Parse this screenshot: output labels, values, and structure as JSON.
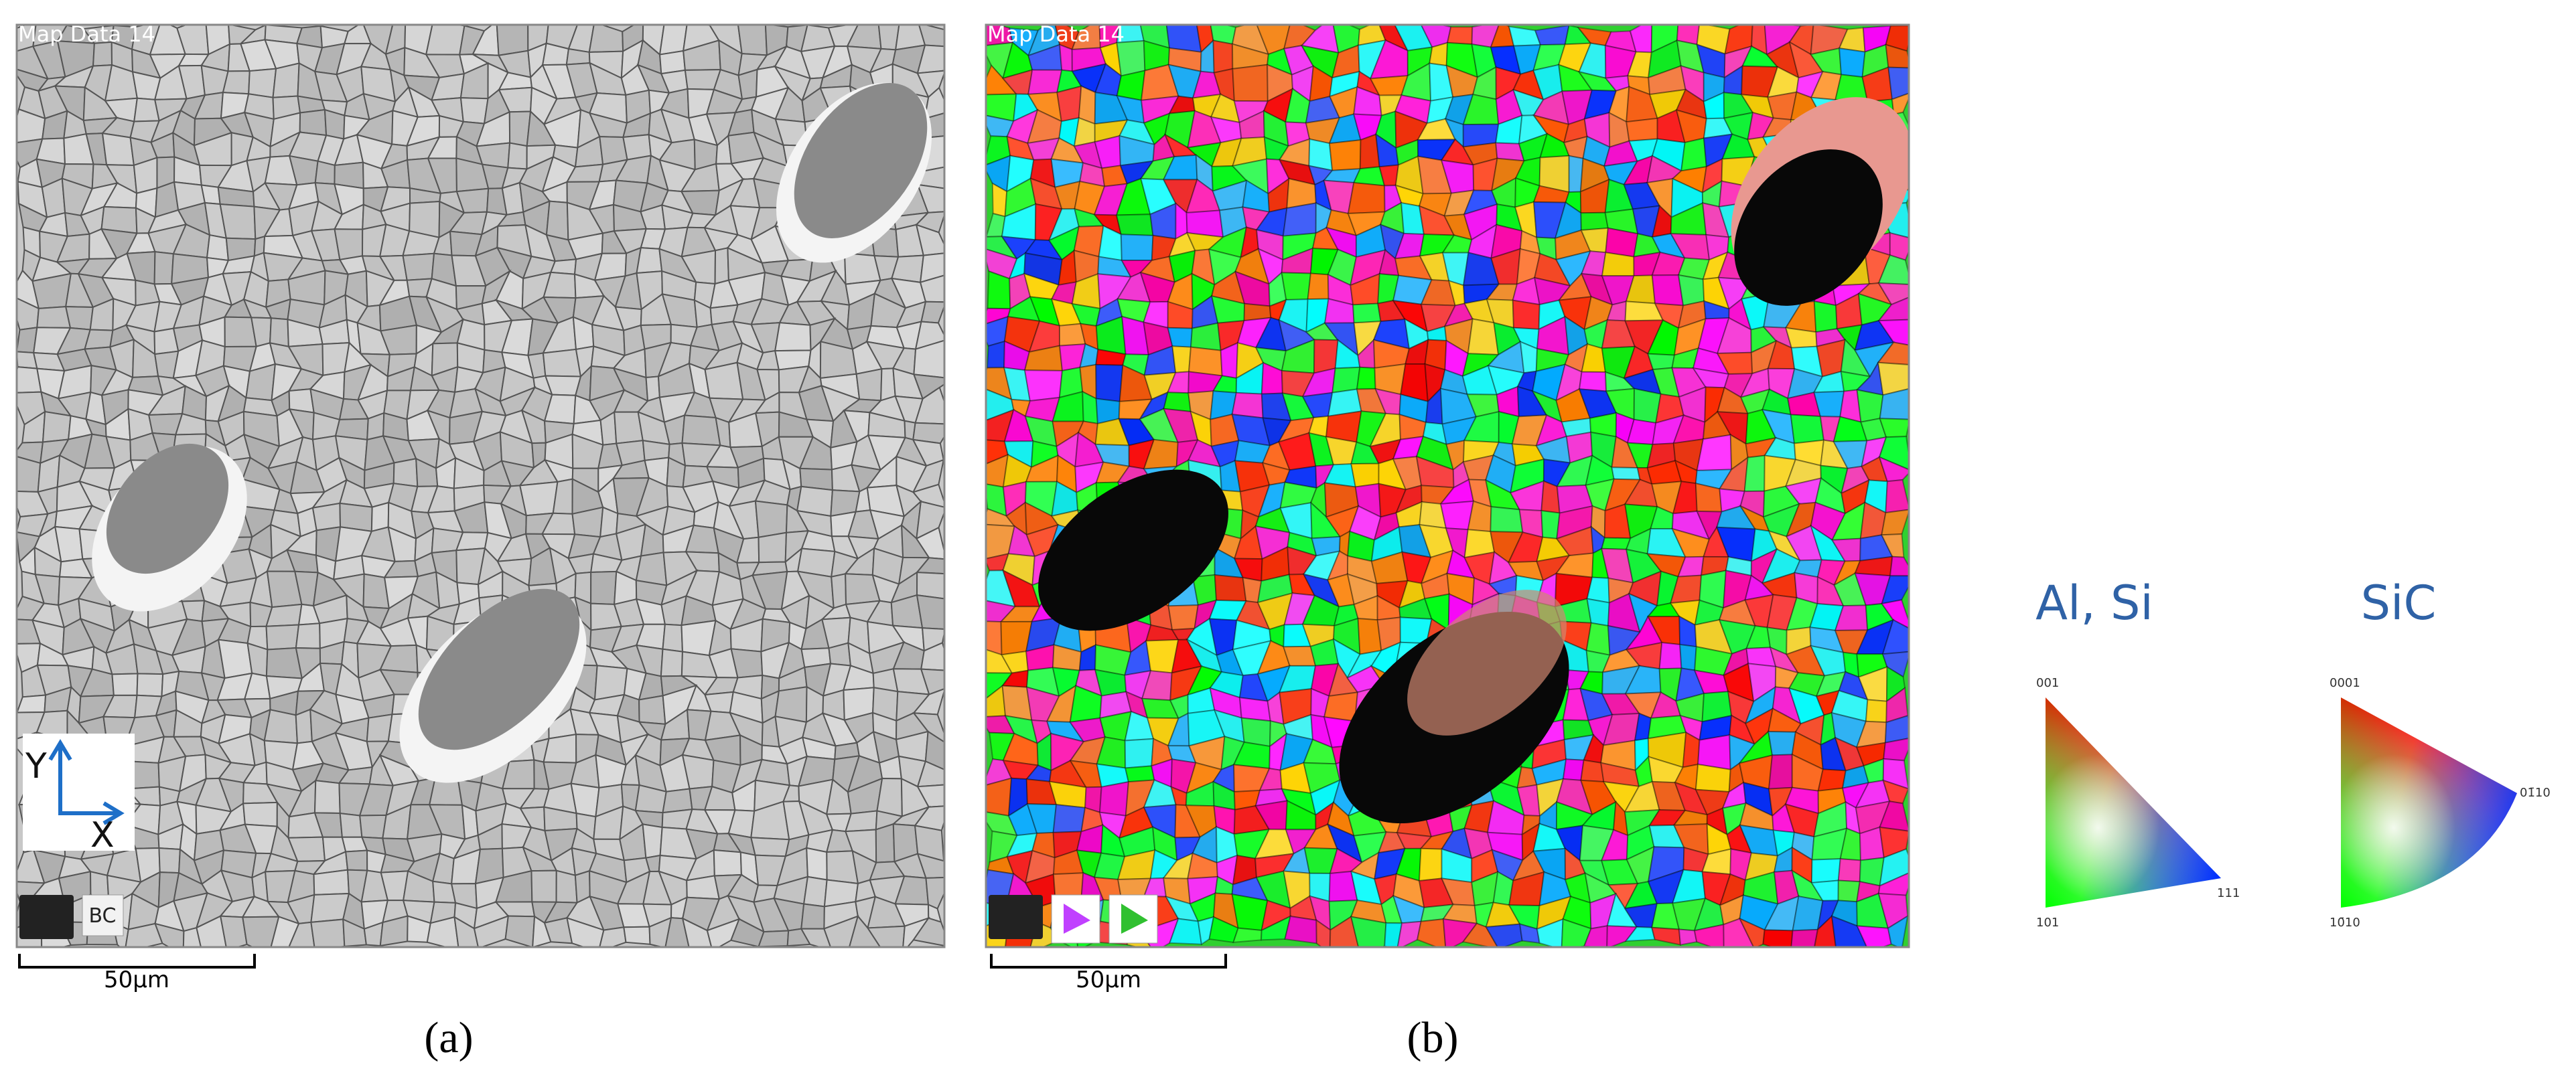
{
  "panels": [
    {
      "label": "(a)",
      "map_title": "Map Data 14",
      "axes": {
        "y": "Y",
        "x": "X"
      },
      "button": "BC",
      "scale_bar": "50µm"
    },
    {
      "label": "(b)",
      "map_title": "Map Data 14",
      "scale_bar": "50µm"
    }
  ],
  "legends": [
    {
      "title": "Al, Si",
      "corners": [
        "001",
        "101",
        "111"
      ]
    },
    {
      "title": "SiC",
      "corners": [
        "0001",
        "10̄10",
        "01̄10"
      ]
    }
  ]
}
